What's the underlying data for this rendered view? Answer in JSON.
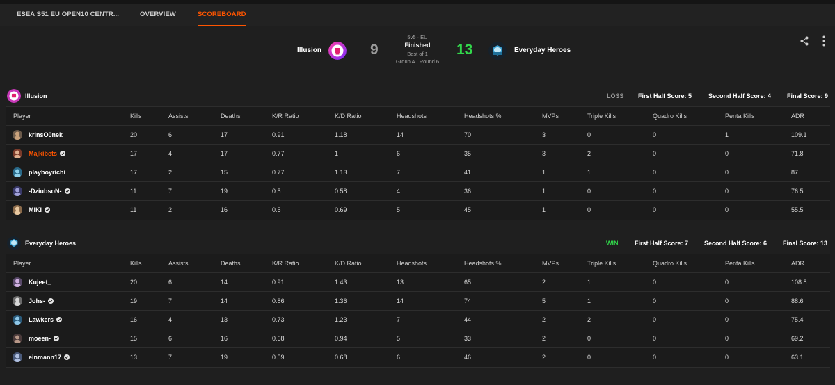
{
  "nav": {
    "tabs": [
      {
        "label": "ESEA S51 EU OPEN10 CENTR..."
      },
      {
        "label": "OVERVIEW"
      },
      {
        "label": "SCOREBOARD"
      }
    ]
  },
  "match": {
    "team1": {
      "name": "Illusion",
      "score": "9"
    },
    "team2": {
      "name": "Everyday Heroes",
      "score": "13"
    },
    "mode": "5v5 · EU",
    "status": "Finished",
    "best_of": "Best of 1",
    "group": "Group A · Round 6"
  },
  "columns": [
    "Player",
    "Kills",
    "Assists",
    "Deaths",
    "K/R Ratio",
    "K/D Ratio",
    "Headshots",
    "Headshots %",
    "MVPs",
    "Triple Kills",
    "Quadro Kills",
    "Penta Kills",
    "ADR"
  ],
  "teams": [
    {
      "name": "Illusion",
      "result": "LOSS",
      "first_half": "First Half Score: 5",
      "second_half": "Second Half Score: 4",
      "final": "Final Score: 9",
      "players": [
        {
          "name": "krinsO0nek",
          "verified": false,
          "highlight": false,
          "stats": [
            "20",
            "6",
            "17",
            "0.91",
            "1.18",
            "14",
            "70",
            "3",
            "0",
            "0",
            "1",
            "109.1"
          ]
        },
        {
          "name": "Majkibets",
          "verified": true,
          "highlight": true,
          "stats": [
            "17",
            "4",
            "17",
            "0.77",
            "1",
            "6",
            "35",
            "3",
            "2",
            "0",
            "0",
            "71.8"
          ]
        },
        {
          "name": "playboyrichi",
          "verified": false,
          "highlight": false,
          "stats": [
            "17",
            "2",
            "15",
            "0.77",
            "1.13",
            "7",
            "41",
            "1",
            "1",
            "0",
            "0",
            "87"
          ]
        },
        {
          "name": "-DziubsoN-",
          "verified": true,
          "highlight": false,
          "stats": [
            "11",
            "7",
            "19",
            "0.5",
            "0.58",
            "4",
            "36",
            "1",
            "0",
            "0",
            "0",
            "76.5"
          ]
        },
        {
          "name": "MIKI",
          "verified": true,
          "highlight": false,
          "stats": [
            "11",
            "2",
            "16",
            "0.5",
            "0.69",
            "5",
            "45",
            "1",
            "0",
            "0",
            "0",
            "55.5"
          ]
        }
      ]
    },
    {
      "name": "Everyday Heroes",
      "result": "WIN",
      "first_half": "First Half Score: 7",
      "second_half": "Second Half Score: 6",
      "final": "Final Score: 13",
      "players": [
        {
          "name": "Kujeet_",
          "verified": false,
          "highlight": false,
          "stats": [
            "20",
            "6",
            "14",
            "0.91",
            "1.43",
            "13",
            "65",
            "2",
            "1",
            "0",
            "0",
            "108.8"
          ]
        },
        {
          "name": "Johs-",
          "verified": true,
          "highlight": false,
          "stats": [
            "19",
            "7",
            "14",
            "0.86",
            "1.36",
            "14",
            "74",
            "5",
            "1",
            "0",
            "0",
            "88.6"
          ]
        },
        {
          "name": "Lawkers",
          "verified": true,
          "highlight": false,
          "stats": [
            "16",
            "4",
            "13",
            "0.73",
            "1.23",
            "7",
            "44",
            "2",
            "2",
            "0",
            "0",
            "75.4"
          ]
        },
        {
          "name": "moeen-",
          "verified": true,
          "highlight": false,
          "stats": [
            "15",
            "6",
            "16",
            "0.68",
            "0.94",
            "5",
            "33",
            "2",
            "0",
            "0",
            "0",
            "69.2"
          ]
        },
        {
          "name": "einmann17",
          "verified": true,
          "highlight": false,
          "stats": [
            "13",
            "7",
            "19",
            "0.59",
            "0.68",
            "6",
            "46",
            "2",
            "0",
            "0",
            "0",
            "63.1"
          ]
        }
      ]
    }
  ],
  "colors": {
    "accent": "#ff5500",
    "win": "#32d74b",
    "loss": "#9a9a9a",
    "team2_score": "#32d74b",
    "team1_score": "#9a9a9a"
  },
  "icons": {
    "share": "share-icon",
    "more": "more-vertical-icon",
    "verified": "verified-badge-icon"
  }
}
